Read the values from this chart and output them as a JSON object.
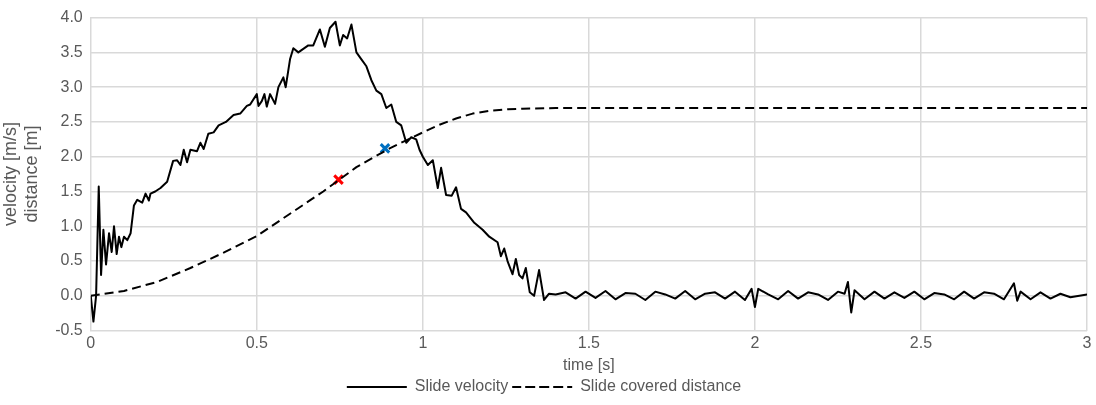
{
  "chart_data": {
    "type": "line",
    "xlabel": "time [s]",
    "ylabel": "velocity [m/s]\ndistance [m]",
    "xlim": [
      0,
      3
    ],
    "xticks": [
      0,
      0.5,
      1,
      1.5,
      2,
      2.5,
      3
    ],
    "ylim": [
      -0.5,
      4
    ],
    "yticks": [
      {
        "value": -0.5,
        "label": "-0.5"
      },
      {
        "value": 0,
        "label": "0.0"
      },
      {
        "value": 0.5,
        "label": "0.5"
      },
      {
        "value": 1,
        "label": "1.0"
      },
      {
        "value": 1.5,
        "label": "1.5"
      },
      {
        "value": 2,
        "label": "2.0"
      },
      {
        "value": 2.5,
        "label": "2.5"
      },
      {
        "value": 3,
        "label": "3.0"
      },
      {
        "value": 3.5,
        "label": "3.5"
      },
      {
        "value": 4,
        "label": "4.0"
      }
    ],
    "grid": true,
    "legend": "bottom",
    "marker": "none",
    "series": [
      {
        "name": "Slide velocity",
        "color": "#000000",
        "line_style": "solid",
        "x": [
          0,
          0.008,
          0.016,
          0.024,
          0.031,
          0.038,
          0.046,
          0.055,
          0.063,
          0.07,
          0.078,
          0.085,
          0.092,
          0.1,
          0.11,
          0.12,
          0.13,
          0.14,
          0.155,
          0.165,
          0.175,
          0.18,
          0.194,
          0.21,
          0.23,
          0.248,
          0.26,
          0.27,
          0.28,
          0.29,
          0.3,
          0.32,
          0.33,
          0.34,
          0.354,
          0.37,
          0.385,
          0.407,
          0.43,
          0.45,
          0.47,
          0.48,
          0.5,
          0.505,
          0.515,
          0.523,
          0.53,
          0.54,
          0.555,
          0.565,
          0.58,
          0.587,
          0.6,
          0.61,
          0.625,
          0.64,
          0.655,
          0.67,
          0.69,
          0.705,
          0.72,
          0.737,
          0.75,
          0.76,
          0.772,
          0.785,
          0.8,
          0.815,
          0.83,
          0.845,
          0.86,
          0.875,
          0.89,
          0.905,
          0.92,
          0.935,
          0.95,
          0.965,
          0.98,
          0.99,
          1.0,
          1.015,
          1.03,
          1.045,
          1.055,
          1.07,
          1.087,
          1.1,
          1.115,
          1.13,
          1.155,
          1.18,
          1.2,
          1.225,
          1.235,
          1.245,
          1.255,
          1.27,
          1.28,
          1.29,
          1.3,
          1.31,
          1.322,
          1.335,
          1.35,
          1.365,
          1.38,
          1.4,
          1.43,
          1.46,
          1.49,
          1.52,
          1.55,
          1.58,
          1.61,
          1.64,
          1.67,
          1.7,
          1.73,
          1.76,
          1.79,
          1.82,
          1.85,
          1.88,
          1.91,
          1.94,
          1.97,
          1.99,
          2.0,
          2.01,
          2.04,
          2.07,
          2.1,
          2.13,
          2.16,
          2.19,
          2.22,
          2.25,
          2.27,
          2.28,
          2.29,
          2.3,
          2.33,
          2.36,
          2.39,
          2.42,
          2.45,
          2.48,
          2.51,
          2.54,
          2.57,
          2.6,
          2.63,
          2.66,
          2.69,
          2.72,
          2.75,
          2.78,
          2.79,
          2.8,
          2.83,
          2.86,
          2.89,
          2.92,
          2.95,
          3.0
        ],
        "values": [
          0,
          -0.37,
          0,
          1.57,
          0.3,
          0.95,
          0.45,
          0.9,
          0.63,
          1.0,
          0.6,
          0.85,
          0.7,
          0.85,
          0.8,
          0.9,
          1.3,
          1.38,
          1.34,
          1.47,
          1.37,
          1.47,
          1.5,
          1.55,
          1.64,
          1.94,
          1.95,
          1.88,
          2.1,
          1.92,
          2.1,
          2.08,
          2.2,
          2.11,
          2.33,
          2.35,
          2.45,
          2.5,
          2.6,
          2.62,
          2.73,
          2.75,
          2.9,
          2.73,
          2.8,
          2.9,
          2.72,
          2.9,
          2.76,
          3.0,
          3.14,
          3.0,
          3.4,
          3.56,
          3.5,
          3.55,
          3.6,
          3.6,
          3.83,
          3.58,
          3.85,
          3.94,
          3.6,
          3.75,
          3.7,
          3.9,
          3.5,
          3.4,
          3.3,
          3.1,
          2.95,
          2.9,
          2.7,
          2.75,
          2.5,
          2.45,
          2.2,
          2.28,
          2.25,
          2.1,
          2.0,
          1.88,
          1.95,
          1.55,
          1.84,
          1.45,
          1.44,
          1.56,
          1.25,
          1.2,
          1.05,
          0.95,
          0.85,
          0.77,
          0.57,
          0.68,
          0.5,
          0.31,
          0.53,
          0.3,
          0.25,
          0.4,
          0.05,
          0,
          0.37,
          -0.06,
          0.03,
          0.02,
          0.05,
          -0.04,
          0.06,
          -0.03,
          0.07,
          -0.05,
          0.04,
          0.03,
          -0.06,
          0.06,
          0.02,
          -0.04,
          0.07,
          -0.05,
          0.03,
          0.05,
          -0.04,
          0.06,
          -0.06,
          0.1,
          -0.16,
          0.1,
          0.02,
          -0.05,
          0.07,
          -0.04,
          0.05,
          0.02,
          -0.06,
          0.06,
          0.03,
          0.2,
          -0.24,
          0.08,
          -0.05,
          0.06,
          -0.04,
          0.05,
          -0.03,
          0.06,
          -0.05,
          0.04,
          0.02,
          -0.05,
          0.06,
          -0.04,
          0.05,
          0.03,
          -0.05,
          0.18,
          -0.07,
          0.06,
          -0.05,
          0.05,
          -0.04,
          0.03,
          -0.02,
          0.02
        ]
      },
      {
        "name": "Slide covered distance",
        "color": "#000000",
        "line_style": "dashed",
        "x": [
          0,
          0.1,
          0.2,
          0.3,
          0.4,
          0.5,
          0.6,
          0.7,
          0.8,
          0.9,
          1.0,
          1.05,
          1.1,
          1.15,
          1.2,
          1.25,
          1.3,
          1.4,
          1.5,
          2,
          2.5,
          3
        ],
        "values": [
          0,
          0.07,
          0.2,
          0.4,
          0.62,
          0.86,
          1.18,
          1.5,
          1.85,
          2.12,
          2.35,
          2.46,
          2.55,
          2.62,
          2.66,
          2.68,
          2.69,
          2.7,
          2.7,
          2.7,
          2.7,
          2.7
        ]
      },
      {
        "type": "scatter",
        "color": "#ff0000",
        "marker": "cross",
        "x": [
          0.746
        ],
        "values": [
          1.67
        ]
      },
      {
        "type": "scatter",
        "color": "#0070c0",
        "marker": "cross",
        "x": [
          0.886
        ],
        "values": [
          2.12
        ]
      }
    ]
  }
}
